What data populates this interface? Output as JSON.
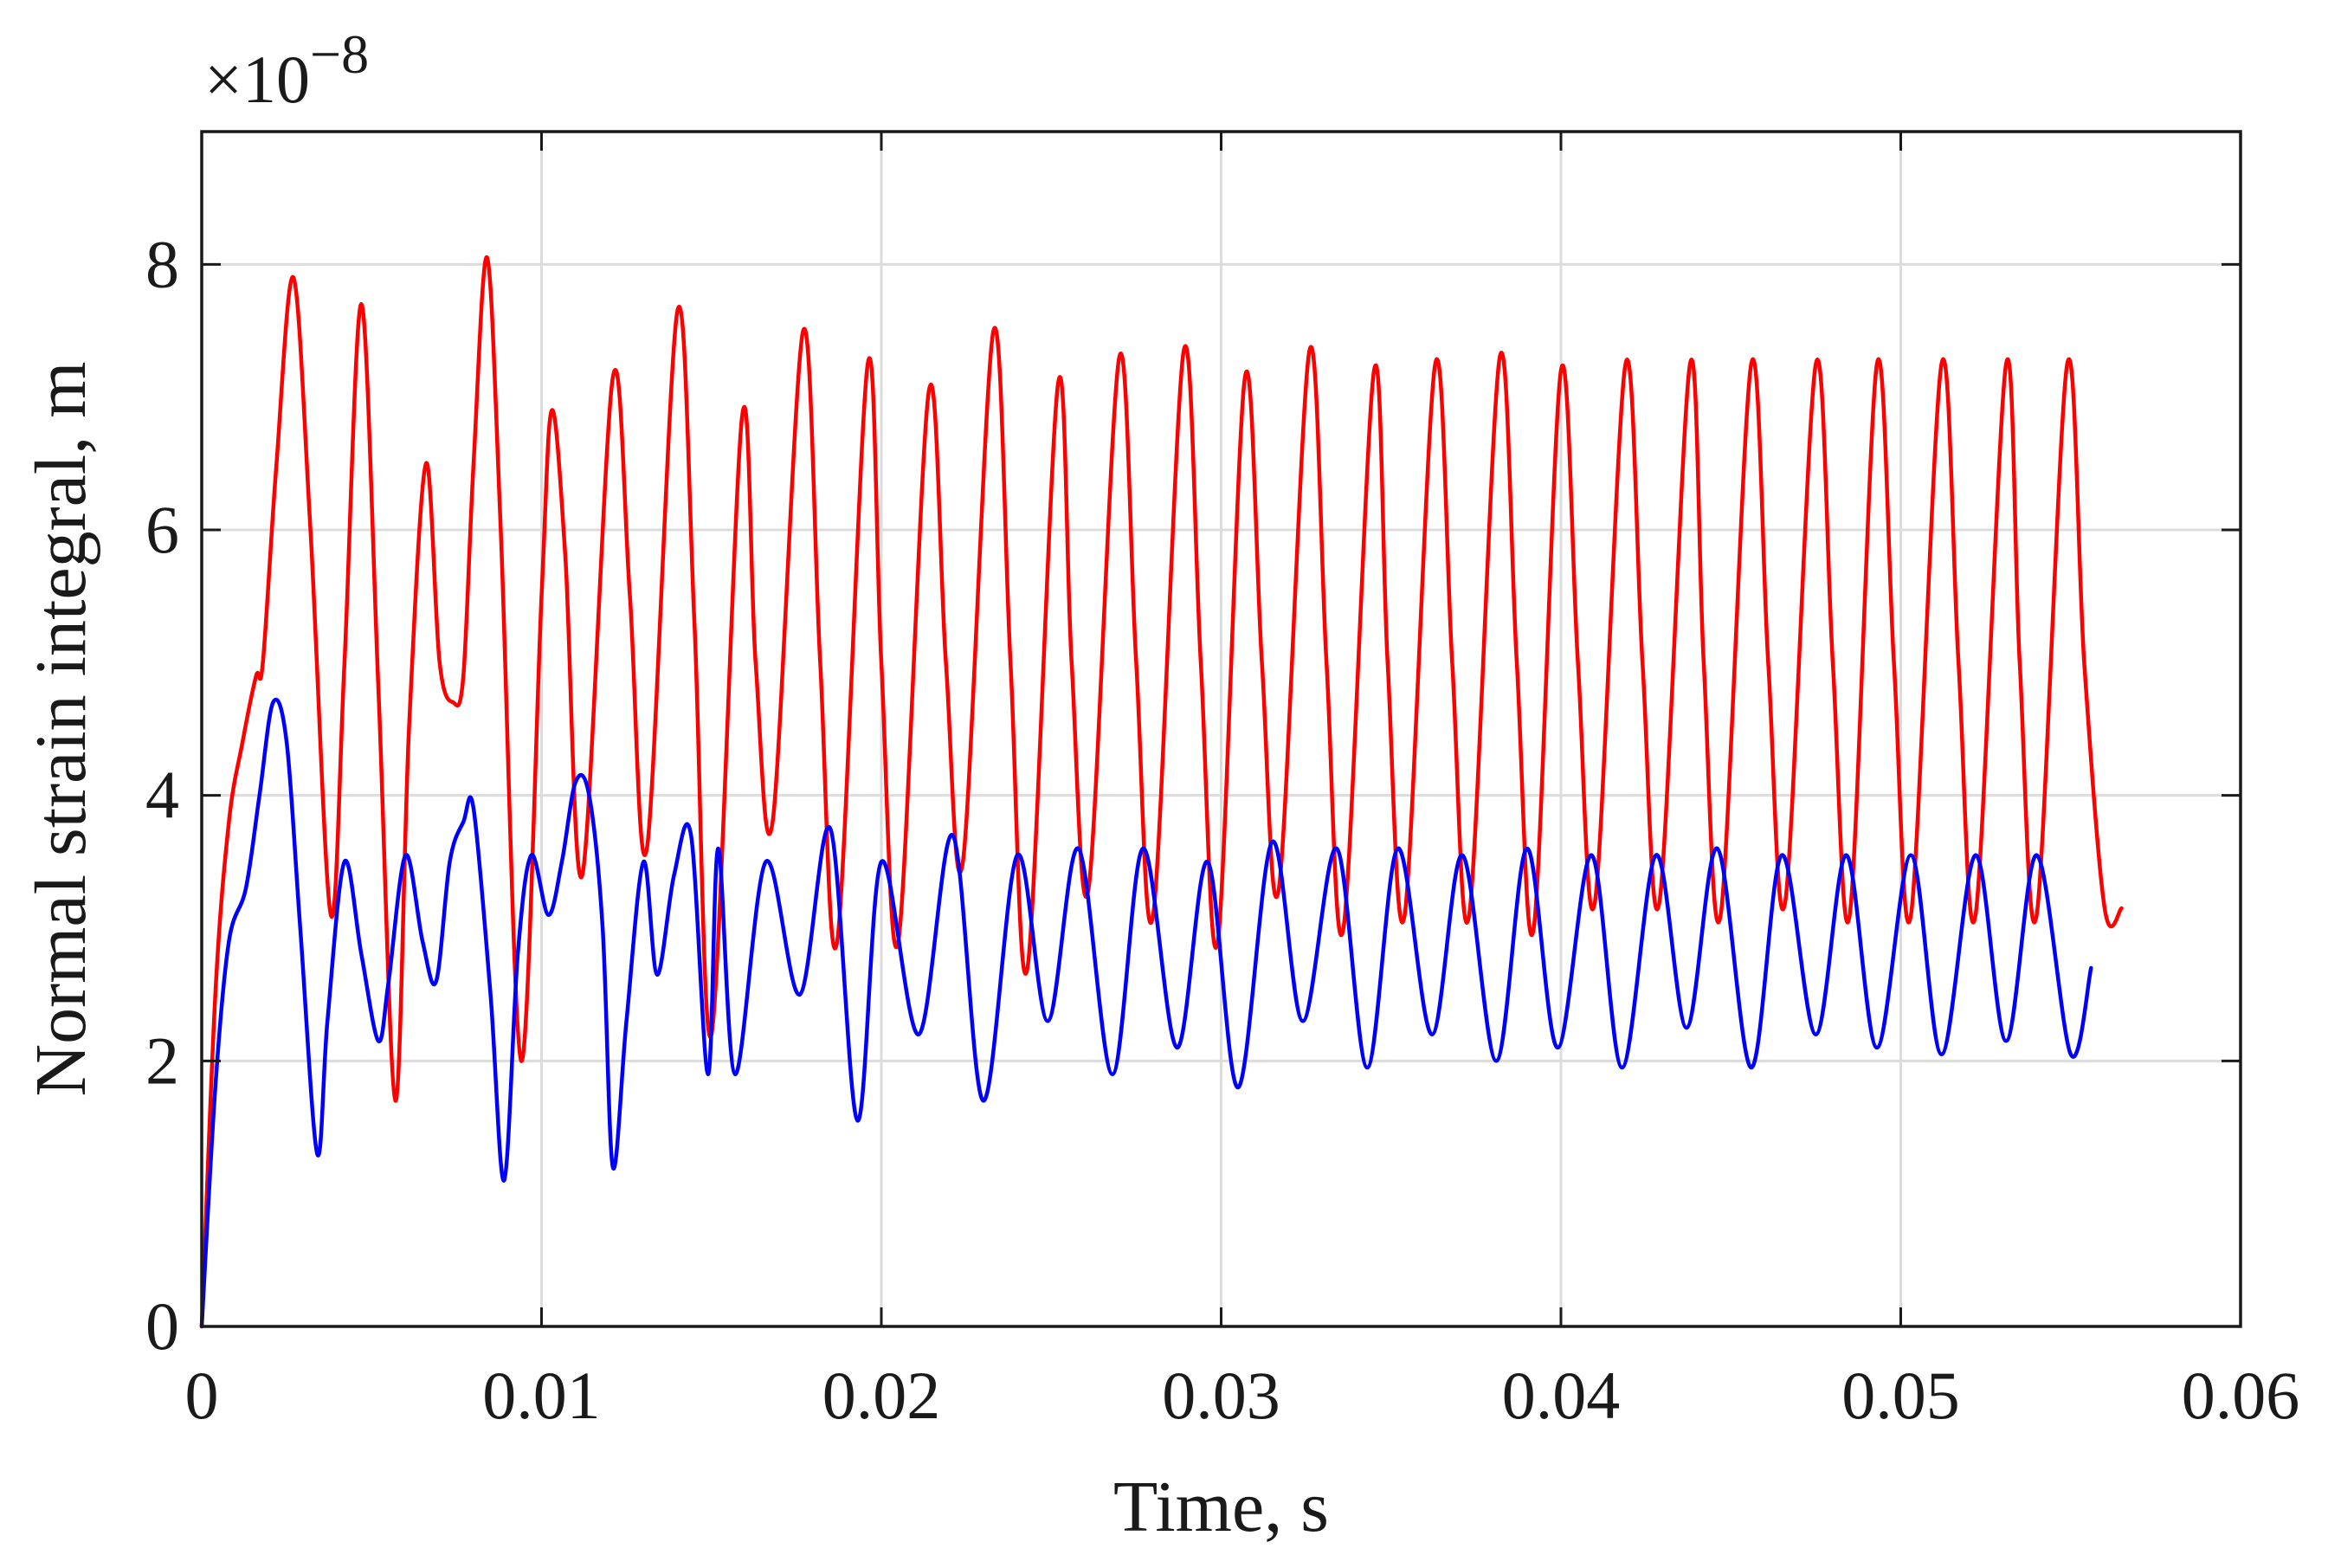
{
  "chart_data": {
    "type": "line",
    "xlabel": "Time, s",
    "ylabel": "Normal strain integral, m",
    "exponent_base": "×10",
    "exponent_power": "−8",
    "xlim": [
      0,
      0.06
    ],
    "ylim": [
      0,
      9
    ],
    "xticks": [
      0,
      0.01,
      0.02,
      0.03,
      0.04,
      0.05,
      0.06
    ],
    "xtick_labels": [
      "0",
      "0.01",
      "0.02",
      "0.03",
      "0.04",
      "0.05",
      "0.06"
    ],
    "yticks": [
      0,
      2,
      4,
      6,
      8
    ],
    "ytick_labels": [
      "0",
      "2",
      "4",
      "6",
      "8"
    ],
    "grid": true,
    "series": [
      {
        "color": "#ff0000",
        "x": [
          0,
          0.0004,
          0.0008,
          0.0012,
          0.0016,
          0.0018,
          0.0022,
          0.0027,
          0.0032,
          0.0038,
          0.0042,
          0.0047,
          0.0052,
          0.0057,
          0.0061,
          0.0066,
          0.007,
          0.0074,
          0.0077,
          0.008,
          0.0084,
          0.0088,
          0.0094,
          0.01,
          0.0103,
          0.0107,
          0.0112,
          0.0121,
          0.0126,
          0.0131,
          0.014,
          0.0145,
          0.015,
          0.0159,
          0.0163,
          0.0168,
          0.0177,
          0.0182,
          0.0187,
          0.0196,
          0.02,
          0.0205,
          0.0214,
          0.0219,
          0.0224,
          0.0233,
          0.0238,
          0.0243,
          0.0252,
          0.0256,
          0.0261,
          0.027,
          0.0275,
          0.028,
          0.0289,
          0.0294,
          0.0299,
          0.0307,
          0.0312,
          0.0317,
          0.0326,
          0.0331,
          0.0336,
          0.0345,
          0.0349,
          0.0354,
          0.0363,
          0.0368,
          0.0373,
          0.0382,
          0.0387,
          0.0392,
          0.04,
          0.0405,
          0.041,
          0.0419,
          0.0424,
          0.0429,
          0.0438,
          0.0442,
          0.0447,
          0.0456,
          0.0461,
          0.0466,
          0.0475,
          0.048,
          0.0485,
          0.0493,
          0.0498,
          0.0503,
          0.0512,
          0.0517,
          0.0522,
          0.0531,
          0.0535,
          0.054,
          0.0549,
          0.0554,
          0.056,
          0.0565
        ],
        "y": [
          0,
          2.5,
          3.8,
          4.4,
          4.9,
          5.0,
          6.5,
          7.9,
          6.0,
          3.1,
          5.0,
          7.7,
          4.8,
          1.7,
          4.5,
          6.5,
          5.0,
          4.7,
          4.9,
          6.5,
          8.05,
          6.0,
          2.0,
          5.5,
          6.9,
          5.8,
          3.4,
          7.15,
          5.5,
          3.6,
          7.65,
          5.3,
          2.2,
          6.85,
          5.0,
          3.8,
          7.5,
          5.0,
          2.9,
          7.25,
          5.0,
          2.9,
          7.05,
          5.0,
          3.5,
          7.5,
          5.0,
          2.7,
          7.1,
          5.0,
          3.3,
          7.3,
          5.0,
          3.1,
          7.35,
          5.0,
          2.9,
          7.15,
          5.0,
          3.3,
          7.35,
          5.0,
          3.0,
          7.2,
          5.0,
          3.1,
          7.25,
          5.0,
          3.1,
          7.3,
          5.0,
          3.0,
          7.2,
          5.0,
          3.2,
          7.25,
          5.0,
          3.2,
          7.25,
          5.0,
          3.1,
          7.25,
          5.0,
          3.2,
          7.25,
          5.0,
          3.1,
          7.25,
          5.0,
          3.1,
          7.25,
          5.0,
          3.1,
          7.25,
          5.0,
          3.1,
          7.25,
          5.0,
          3.15,
          3.15
        ]
      },
      {
        "color": "#0000ff",
        "x": [
          0,
          0.0004,
          0.0008,
          0.0013,
          0.0017,
          0.0021,
          0.0025,
          0.0029,
          0.0034,
          0.0037,
          0.0042,
          0.0047,
          0.0052,
          0.0055,
          0.006,
          0.0065,
          0.0069,
          0.0073,
          0.0077,
          0.008,
          0.0085,
          0.0089,
          0.0093,
          0.0097,
          0.0102,
          0.0106,
          0.011,
          0.0114,
          0.0118,
          0.0121,
          0.0125,
          0.013,
          0.0134,
          0.0139,
          0.0144,
          0.0149,
          0.0152,
          0.0157,
          0.0166,
          0.0176,
          0.0185,
          0.0193,
          0.02,
          0.0211,
          0.0221,
          0.023,
          0.024,
          0.0249,
          0.0258,
          0.0268,
          0.0277,
          0.0287,
          0.0296,
          0.0305,
          0.0315,
          0.0324,
          0.0334,
          0.0343,
          0.0352,
          0.0362,
          0.0371,
          0.0381,
          0.039,
          0.0399,
          0.0409,
          0.0418,
          0.0428,
          0.0437,
          0.0446,
          0.0456,
          0.0465,
          0.0475,
          0.0484,
          0.0493,
          0.0503,
          0.0512,
          0.0522,
          0.0531,
          0.054,
          0.055,
          0.0556
        ],
        "y": [
          0,
          1.8,
          2.9,
          3.3,
          4.0,
          4.7,
          4.4,
          3.0,
          1.3,
          2.3,
          3.5,
          2.8,
          2.15,
          2.6,
          3.55,
          2.9,
          2.6,
          3.5,
          3.8,
          3.9,
          2.5,
          1.1,
          2.8,
          3.55,
          3.1,
          3.5,
          4.1,
          4.0,
          3.0,
          1.2,
          2.3,
          3.5,
          2.65,
          3.4,
          3.7,
          1.9,
          3.6,
          1.9,
          3.5,
          2.5,
          3.75,
          1.55,
          3.5,
          2.2,
          3.7,
          1.7,
          3.55,
          2.3,
          3.6,
          1.9,
          3.6,
          2.1,
          3.5,
          1.8,
          3.65,
          2.3,
          3.6,
          1.95,
          3.6,
          2.2,
          3.55,
          2.0,
          3.6,
          2.1,
          3.55,
          1.95,
          3.55,
          2.25,
          3.6,
          1.95,
          3.55,
          2.2,
          3.55,
          2.1,
          3.55,
          2.05,
          3.55,
          2.15,
          3.55,
          2.05,
          2.7
        ]
      }
    ]
  }
}
